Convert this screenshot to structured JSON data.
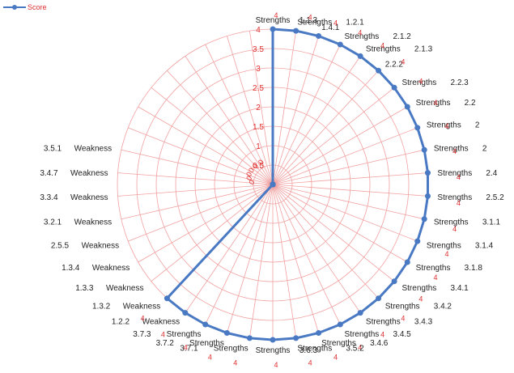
{
  "chart_data": {
    "type": "radar",
    "series": [
      {
        "name": "Score",
        "values": [
          4,
          4,
          4,
          4,
          4,
          4,
          4,
          4,
          4,
          4,
          4,
          4,
          4,
          4,
          4,
          4,
          4,
          4,
          4,
          4,
          4,
          4,
          4,
          4,
          4,
          4,
          4,
          0,
          0,
          0,
          0,
          0,
          0,
          0,
          0,
          0,
          0,
          0,
          0,
          0,
          0,
          0
        ]
      }
    ],
    "categories": [
      "1.1.3",
      "1.2.1",
      "1.4.1",
      "2.1.2",
      "2.1.3",
      "2.2.2",
      "2.2.3",
      "2.2",
      "2",
      "2",
      "2.4",
      "2.5.2",
      "3.1.1",
      "3.1.4",
      "3.1.8",
      "3.4.1",
      "3.4.2",
      "3.4.3",
      "3.4.5",
      "3.4.6",
      "3.5.2",
      "3.6.3",
      "3.7.1",
      "3.7.2",
      "3.7.3",
      "1.2.2",
      "1.3.2",
      "1.3.3",
      "1.3.4",
      "2.5.5",
      "3.2.1",
      "3.3.4",
      "3.4.7",
      "3.5.1",
      "",
      "",
      "",
      "",
      "",
      "",
      "",
      ""
    ],
    "category_prefixes": [
      "Strengths",
      "Strengths",
      "",
      "Strengths",
      "Strengths",
      "",
      "Strengths",
      "Strengths",
      "Strengths",
      "Strengths",
      "Strengths",
      "Strengths",
      "Strengths",
      "Strengths",
      "Strengths",
      "Strengths",
      "Strengths",
      "Strengths",
      "Strengths",
      "Strengths",
      "Strengths",
      "Strengths",
      "Strengths",
      "Strengths",
      "Strengths",
      "Weakness",
      "Weakness",
      "Weakness",
      "Weakness",
      "Weakness",
      "Weakness",
      "Weakness",
      "Weakness",
      "Weakness",
      "",
      "",
      "",
      "",
      "",
      "",
      "",
      ""
    ],
    "data_label": "4",
    "rlim": [
      0,
      4
    ],
    "ticks": [
      "0.5",
      "1",
      "1.5",
      "2",
      "2.5",
      "3",
      "3.5",
      "4"
    ],
    "center_tick_labels": [
      "0",
      "0",
      "0",
      "0",
      "0",
      "0"
    ],
    "grid": true,
    "legend": "top-left",
    "colors": {
      "series": "#4a79c4",
      "grid": "#f2a0a0",
      "tick_label": "#e03030",
      "data_label": "#e03030",
      "category_label": "#222222"
    }
  }
}
